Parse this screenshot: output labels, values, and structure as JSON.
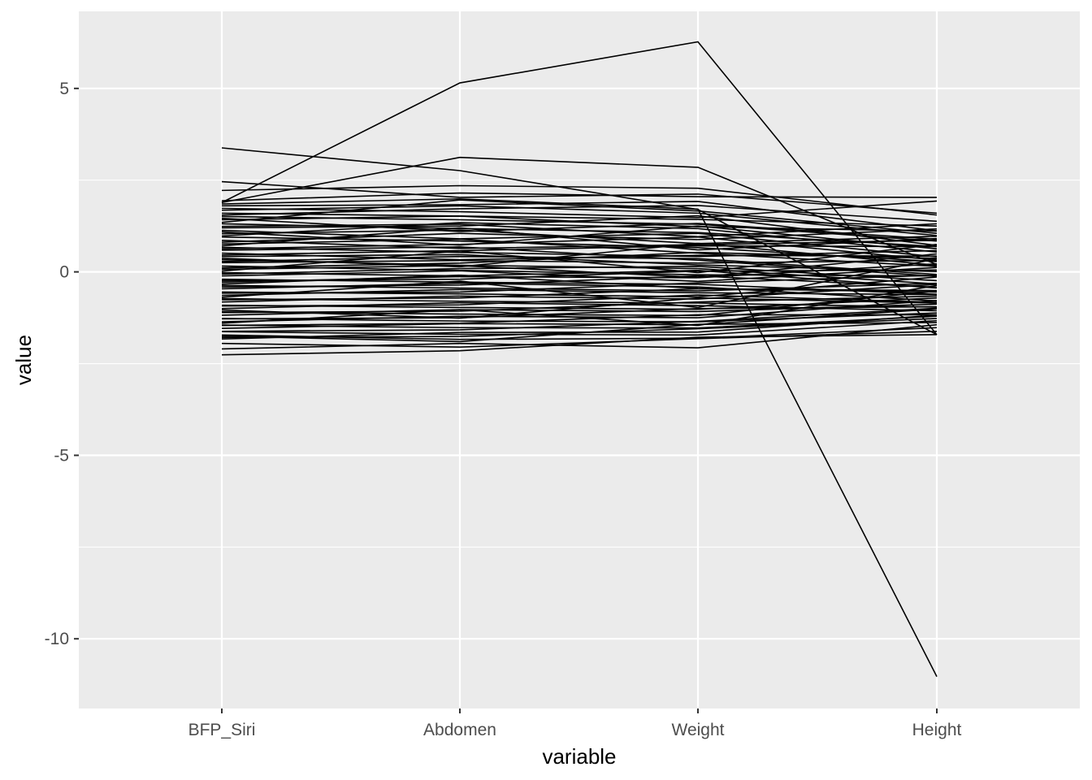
{
  "chart_data": {
    "type": "line",
    "subtype": "parallel-coordinates",
    "title": "",
    "xlabel": "variable",
    "ylabel": "value",
    "categories": [
      "BFP_Siri",
      "Abdomen",
      "Weight",
      "Height"
    ],
    "ylim": [
      -11.9,
      7.1
    ],
    "yticks": [
      5,
      0,
      -5,
      -10
    ],
    "ytick_labels": [
      "5",
      "0",
      "-5",
      "-10"
    ],
    "grid": true,
    "legend": "none",
    "colors": {
      "panel": "#ebebeb",
      "grid": "#ffffff",
      "line": "#000000",
      "tick_text": "#4d4d4d"
    },
    "series": [
      {
        "values": [
          1.89,
          5.15,
          6.27,
          -1.71
        ]
      },
      {
        "values": [
          3.38,
          2.76,
          1.7,
          -1.71
        ]
      },
      {
        "values": [
          1.89,
          3.12,
          2.85,
          0.2
        ]
      },
      {
        "values": [
          1.85,
          1.99,
          1.71,
          -11.03
        ]
      },
      {
        "values": [
          2.46,
          2.03,
          2.12,
          1.6
        ]
      },
      {
        "values": [
          2.22,
          2.35,
          2.28,
          1.55
        ]
      },
      {
        "values": [
          1.94,
          2.15,
          2.05,
          2.03
        ]
      },
      {
        "values": [
          1.8,
          1.83,
          1.92,
          1.12
        ]
      },
      {
        "values": [
          1.73,
          1.64,
          1.48,
          1.93
        ]
      },
      {
        "values": [
          1.68,
          1.8,
          1.6,
          0.99
        ]
      },
      {
        "values": [
          1.6,
          1.52,
          1.43,
          1.25
        ]
      },
      {
        "values": [
          1.51,
          1.42,
          1.3,
          0.84
        ]
      },
      {
        "values": [
          1.42,
          1.52,
          1.23,
          1.11
        ]
      },
      {
        "values": [
          1.31,
          1.18,
          1.07,
          0.69
        ]
      },
      {
        "values": [
          1.24,
          1.3,
          0.96,
          1.31
        ]
      },
      {
        "values": [
          1.13,
          0.9,
          1.05,
          0.41
        ]
      },
      {
        "values": [
          1.04,
          1.14,
          0.77,
          0.97
        ]
      },
      {
        "values": [
          0.95,
          0.84,
          0.66,
          0.28
        ]
      },
      {
        "values": [
          0.86,
          0.64,
          0.74,
          0.86
        ]
      },
      {
        "values": [
          0.76,
          0.89,
          0.51,
          0.15
        ]
      },
      {
        "values": [
          0.67,
          0.53,
          0.42,
          0.58
        ]
      },
      {
        "values": [
          0.59,
          0.68,
          0.32,
          -0.12
        ]
      },
      {
        "values": [
          0.51,
          0.33,
          0.45,
          0.43
        ]
      },
      {
        "values": [
          0.42,
          0.47,
          0.19,
          0.01
        ]
      },
      {
        "values": [
          0.33,
          0.18,
          0.09,
          -0.33
        ]
      },
      {
        "values": [
          0.25,
          0.31,
          0.24,
          0.31
        ]
      },
      {
        "values": [
          0.16,
          0.04,
          -0.08,
          -0.11
        ]
      },
      {
        "values": [
          0.07,
          0.17,
          -0.15,
          0.49
        ]
      },
      {
        "values": [
          -0.02,
          -0.11,
          0.04,
          -0.44
        ]
      },
      {
        "values": [
          -0.11,
          0.03,
          -0.26,
          0.12
        ]
      },
      {
        "values": [
          -0.2,
          -0.28,
          -0.34,
          -0.61
        ]
      },
      {
        "values": [
          -0.28,
          -0.13,
          -0.16,
          0.22
        ]
      },
      {
        "values": [
          -0.37,
          -0.44,
          -0.52,
          -0.31
        ]
      },
      {
        "values": [
          -0.46,
          -0.31,
          -0.41,
          -0.79
        ]
      },
      {
        "values": [
          -0.55,
          -0.6,
          -0.68,
          -0.14
        ]
      },
      {
        "values": [
          -0.64,
          -0.48,
          -0.57,
          -0.62
        ]
      },
      {
        "values": [
          -0.73,
          -0.8,
          -0.85,
          -0.96
        ]
      },
      {
        "values": [
          -0.82,
          -0.66,
          -0.74,
          -0.34
        ]
      },
      {
        "values": [
          -0.91,
          -0.97,
          -1.02,
          -0.71
        ]
      },
      {
        "values": [
          -1.0,
          -0.84,
          -0.92,
          -1.06
        ]
      },
      {
        "values": [
          -1.09,
          -1.15,
          -1.19,
          -0.52
        ]
      },
      {
        "values": [
          -1.18,
          -1.03,
          -1.08,
          -0.88
        ]
      },
      {
        "values": [
          -1.27,
          -1.34,
          -1.36,
          -1.12
        ]
      },
      {
        "values": [
          -1.36,
          -1.21,
          -1.25,
          -0.78
        ]
      },
      {
        "values": [
          -1.45,
          -1.52,
          -1.53,
          -1.21
        ]
      },
      {
        "values": [
          -1.54,
          -1.41,
          -1.44,
          -1.01
        ]
      },
      {
        "values": [
          -1.63,
          -1.7,
          -1.72,
          -1.33
        ]
      },
      {
        "values": [
          -1.72,
          -1.84,
          -1.81,
          -1.52
        ]
      },
      {
        "values": [
          -1.83,
          -1.65,
          -1.64,
          -1.18
        ]
      },
      {
        "values": [
          -1.95,
          -2.05,
          -1.82,
          -1.62
        ]
      },
      {
        "values": [
          -2.1,
          -1.95,
          -2.07,
          -1.44
        ]
      },
      {
        "values": [
          -2.26,
          -2.15,
          -1.78,
          -1.71
        ]
      },
      {
        "values": [
          1.55,
          1.72,
          1.81,
          1.38
        ]
      },
      {
        "values": [
          1.35,
          1.96,
          1.66,
          1.05
        ]
      },
      {
        "values": [
          1.2,
          1.25,
          1.53,
          0.72
        ]
      },
      {
        "values": [
          0.98,
          1.34,
          1.18,
          0.54
        ]
      },
      {
        "values": [
          0.81,
          1.05,
          0.88,
          1.17
        ]
      },
      {
        "values": [
          0.63,
          0.75,
          0.95,
          0.32
        ]
      },
      {
        "values": [
          0.46,
          0.58,
          0.71,
          0.69
        ]
      },
      {
        "values": [
          0.28,
          0.42,
          0.36,
          -0.07
        ]
      },
      {
        "values": [
          0.11,
          0.24,
          0.53,
          0.37
        ]
      },
      {
        "values": [
          -0.06,
          0.09,
          0.15,
          -0.24
        ]
      },
      {
        "values": [
          -0.24,
          -0.2,
          0.02,
          0.05
        ]
      },
      {
        "values": [
          -0.41,
          -0.36,
          -0.11,
          -0.42
        ]
      },
      {
        "values": [
          -0.58,
          -0.55,
          -0.3,
          -0.09
        ]
      },
      {
        "values": [
          -0.76,
          -0.71,
          -0.46,
          -0.51
        ]
      },
      {
        "values": [
          -0.93,
          -0.9,
          -0.63,
          -0.83
        ]
      },
      {
        "values": [
          -1.11,
          -1.07,
          -0.82,
          -0.66
        ]
      },
      {
        "values": [
          -1.28,
          -1.25,
          -1.0,
          -0.95
        ]
      },
      {
        "values": [
          -1.46,
          -1.4,
          -1.17,
          -1.17
        ]
      },
      {
        "values": [
          -1.62,
          -1.58,
          -1.35,
          -0.99
        ]
      },
      {
        "values": [
          -1.79,
          -1.76,
          -1.55,
          -1.27
        ]
      },
      {
        "values": [
          1.46,
          1.1,
          1.32,
          0.89
        ]
      },
      {
        "values": [
          1.09,
          0.73,
          1.25,
          0.63
        ]
      },
      {
        "values": [
          0.71,
          1.2,
          0.6,
          0.91
        ]
      },
      {
        "values": [
          0.37,
          0.14,
          0.78,
          0.18
        ]
      },
      {
        "values": [
          0.02,
          0.57,
          -0.02,
          0.75
        ]
      },
      {
        "values": [
          -0.33,
          -0.09,
          -0.45,
          -0.55
        ]
      },
      {
        "values": [
          -0.69,
          -0.25,
          -0.97,
          0.36
        ]
      },
      {
        "values": [
          -1.04,
          -1.26,
          -0.71,
          -0.85
        ]
      },
      {
        "values": [
          -1.4,
          -1.03,
          -1.46,
          -0.37
        ]
      },
      {
        "values": [
          -1.75,
          -1.9,
          -1.43,
          -1.38
        ]
      }
    ]
  }
}
